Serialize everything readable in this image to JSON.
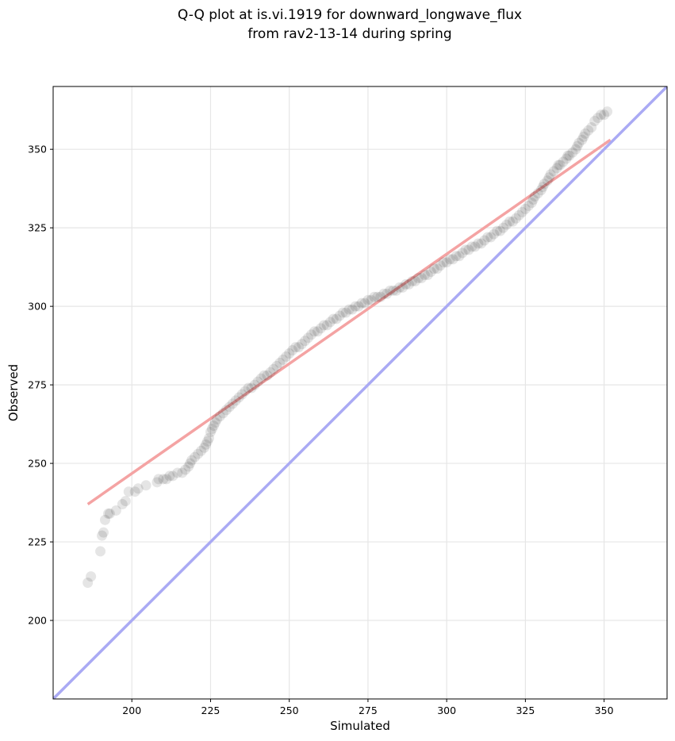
{
  "chart_data": {
    "type": "scatter",
    "title_line1": "Q-Q plot at is.vi.1919 for downward_longwave_flux",
    "title_line2": "from rav2-13-14 during spring",
    "xlabel": "Simulated",
    "ylabel": "Observed",
    "xlim": [
      175,
      370
    ],
    "ylim": [
      175,
      370
    ],
    "grid": true,
    "x_ticks": [
      200,
      225,
      250,
      275,
      300,
      325,
      350
    ],
    "y_ticks": [
      200,
      225,
      250,
      275,
      300,
      325,
      350
    ],
    "colors": {
      "points": "#000000",
      "fit_line": "#f4a3a3",
      "identity_line": "#aaaaf4",
      "grid": "#e6e6e6"
    },
    "fit_line": {
      "x": [
        186,
        352
      ],
      "y": [
        237,
        353
      ]
    },
    "identity_line": {
      "x": [
        175,
        370
      ],
      "y": [
        175,
        370
      ]
    },
    "points": [
      [
        186,
        212
      ],
      [
        187,
        214
      ],
      [
        190,
        222
      ],
      [
        190.5,
        227
      ],
      [
        191,
        228
      ],
      [
        191.5,
        232
      ],
      [
        192.5,
        234
      ],
      [
        193,
        234
      ],
      [
        195,
        235
      ],
      [
        197,
        237
      ],
      [
        198,
        238
      ],
      [
        199,
        241
      ],
      [
        201,
        241
      ],
      [
        202,
        242
      ],
      [
        204.5,
        243
      ],
      [
        208,
        244
      ],
      [
        208.5,
        245
      ],
      [
        210,
        245
      ],
      [
        211,
        245
      ],
      [
        212,
        246
      ],
      [
        213,
        246
      ],
      [
        214.5,
        247
      ],
      [
        216,
        247
      ],
      [
        217,
        248
      ],
      [
        218,
        249
      ],
      [
        218.5,
        250
      ],
      [
        219,
        251
      ],
      [
        220,
        252
      ],
      [
        221,
        253
      ],
      [
        222,
        254
      ],
      [
        223,
        255
      ],
      [
        223.5,
        256
      ],
      [
        224,
        257
      ],
      [
        224.5,
        258
      ],
      [
        225,
        260
      ],
      [
        225.5,
        261
      ],
      [
        226,
        262
      ],
      [
        226.5,
        263
      ],
      [
        227,
        264
      ],
      [
        228,
        265
      ],
      [
        229,
        266
      ],
      [
        230,
        267
      ],
      [
        231,
        268
      ],
      [
        232,
        269
      ],
      [
        233,
        270
      ],
      [
        234,
        271
      ],
      [
        235,
        272
      ],
      [
        236,
        273
      ],
      [
        237,
        274
      ],
      [
        238,
        274
      ],
      [
        239,
        275
      ],
      [
        240,
        276
      ],
      [
        241,
        277
      ],
      [
        242,
        278
      ],
      [
        243,
        278
      ],
      [
        244,
        279
      ],
      [
        245,
        280
      ],
      [
        246,
        281
      ],
      [
        247,
        282
      ],
      [
        248,
        283
      ],
      [
        249,
        284
      ],
      [
        250,
        285
      ],
      [
        251,
        286
      ],
      [
        252,
        287
      ],
      [
        253,
        287
      ],
      [
        254,
        288
      ],
      [
        255,
        289
      ],
      [
        256,
        290
      ],
      [
        257,
        291
      ],
      [
        258,
        292
      ],
      [
        259,
        292
      ],
      [
        260,
        293
      ],
      [
        261,
        294
      ],
      [
        262,
        294
      ],
      [
        263,
        295
      ],
      [
        264,
        296
      ],
      [
        265,
        296
      ],
      [
        266,
        297
      ],
      [
        267,
        298
      ],
      [
        268,
        298
      ],
      [
        269,
        299
      ],
      [
        270,
        299
      ],
      [
        271,
        300
      ],
      [
        272,
        300
      ],
      [
        273,
        301
      ],
      [
        274,
        301
      ],
      [
        275,
        302
      ],
      [
        276,
        302
      ],
      [
        277,
        303
      ],
      [
        278,
        303
      ],
      [
        279,
        303
      ],
      [
        280,
        304
      ],
      [
        281,
        304
      ],
      [
        282,
        305
      ],
      [
        283,
        305
      ],
      [
        284,
        305
      ],
      [
        285,
        306
      ],
      [
        286,
        306
      ],
      [
        287,
        307
      ],
      [
        288,
        307
      ],
      [
        289,
        308
      ],
      [
        290,
        308
      ],
      [
        291,
        309
      ],
      [
        292,
        309
      ],
      [
        293,
        310
      ],
      [
        294,
        310
      ],
      [
        295,
        311
      ],
      [
        296,
        312
      ],
      [
        297,
        312
      ],
      [
        298,
        313
      ],
      [
        299,
        314
      ],
      [
        300,
        314
      ],
      [
        301,
        315
      ],
      [
        302,
        315
      ],
      [
        303,
        316
      ],
      [
        304,
        316
      ],
      [
        305,
        317
      ],
      [
        306,
        318
      ],
      [
        307,
        318
      ],
      [
        308,
        319
      ],
      [
        309,
        319
      ],
      [
        310,
        320
      ],
      [
        311,
        320
      ],
      [
        312,
        321
      ],
      [
        313,
        322
      ],
      [
        314,
        322
      ],
      [
        315,
        323
      ],
      [
        316,
        324
      ],
      [
        317,
        324
      ],
      [
        318,
        325
      ],
      [
        319,
        326
      ],
      [
        320,
        327
      ],
      [
        321,
        327
      ],
      [
        322,
        328
      ],
      [
        323,
        329
      ],
      [
        324,
        330
      ],
      [
        325,
        331
      ],
      [
        326,
        332
      ],
      [
        327,
        333
      ],
      [
        327.5,
        334
      ],
      [
        328,
        335
      ],
      [
        329,
        336
      ],
      [
        330,
        337
      ],
      [
        330.5,
        338
      ],
      [
        331,
        339
      ],
      [
        332,
        340
      ],
      [
        332.5,
        341
      ],
      [
        333,
        342
      ],
      [
        334,
        343
      ],
      [
        335,
        344
      ],
      [
        335.5,
        345
      ],
      [
        336,
        345
      ],
      [
        337,
        346
      ],
      [
        338,
        347
      ],
      [
        338.5,
        348
      ],
      [
        339,
        348
      ],
      [
        340,
        349
      ],
      [
        341,
        350
      ],
      [
        341.5,
        351
      ],
      [
        342,
        352
      ],
      [
        343,
        353
      ],
      [
        343.5,
        354
      ],
      [
        344,
        355
      ],
      [
        345,
        356
      ],
      [
        346,
        357
      ],
      [
        347,
        359
      ],
      [
        348,
        360
      ],
      [
        349,
        361
      ],
      [
        350,
        361
      ],
      [
        351,
        362
      ]
    ]
  }
}
